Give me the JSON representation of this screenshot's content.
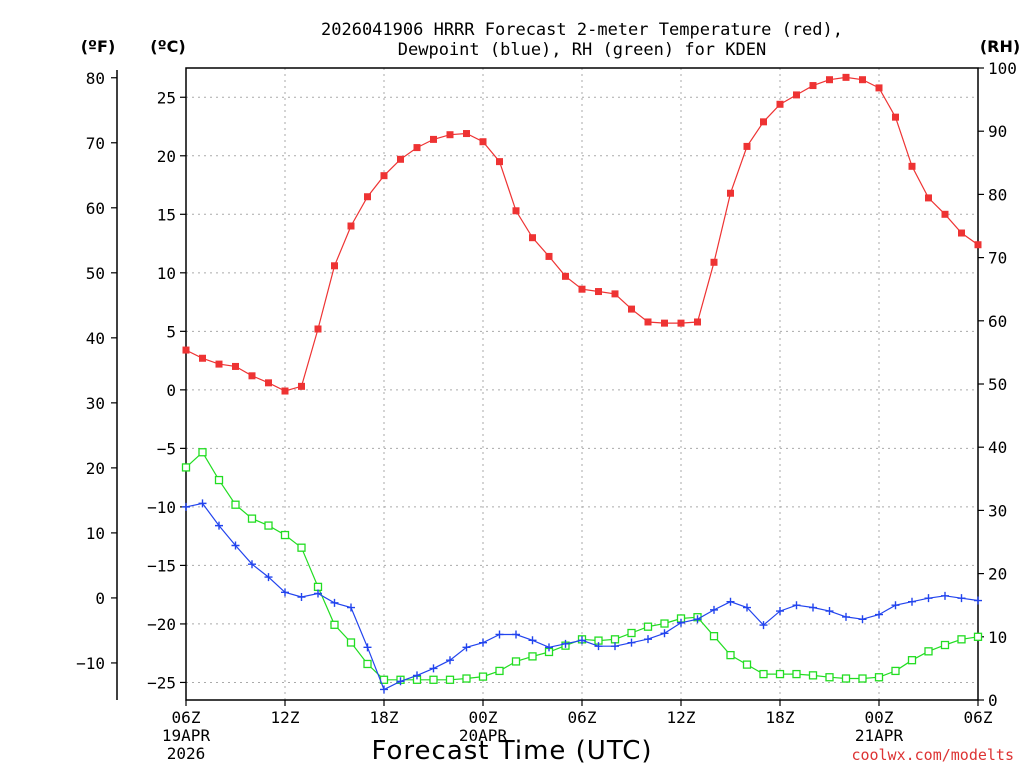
{
  "chart_data": {
    "type": "line",
    "title_line1": "2026041906 HRRR Forecast 2-meter Temperature (red),",
    "title_line2": "Dewpoint (blue), RH (green) for KDEN",
    "xlabel": "Forecast Time (UTC)",
    "credit": "coolwx.com/modelts",
    "unit_labels": {
      "fahrenheit": "(ºF)",
      "celsius": "(ºC)",
      "rh": "(RH)"
    },
    "colors": {
      "temperature": "#ee3333",
      "dewpoint": "#2244ee",
      "rh": "#22dd22",
      "grid": "#aaaaaa",
      "credit": "#dd3333"
    },
    "x_range_hours": [
      0,
      48
    ],
    "celsius_axis": {
      "range": [
        -26.5,
        27.5
      ],
      "ticks": [
        -25,
        -20,
        -15,
        -10,
        -5,
        0,
        5,
        10,
        15,
        20,
        25
      ]
    },
    "fahrenheit_axis": {
      "ticks": [
        -10,
        0,
        10,
        20,
        30,
        40,
        50,
        60,
        70,
        80
      ]
    },
    "rh_axis": {
      "range": [
        0,
        100
      ],
      "ticks": [
        0,
        10,
        20,
        30,
        40,
        50,
        60,
        70,
        80,
        90,
        100
      ]
    },
    "x_ticks": [
      {
        "hour": 0,
        "label": "06Z",
        "sub1": "19APR",
        "sub2": "2026"
      },
      {
        "hour": 6,
        "label": "12Z",
        "sub1": "",
        "sub2": ""
      },
      {
        "hour": 12,
        "label": "18Z",
        "sub1": "",
        "sub2": ""
      },
      {
        "hour": 18,
        "label": "00Z",
        "sub1": "20APR",
        "sub2": ""
      },
      {
        "hour": 24,
        "label": "06Z",
        "sub1": "",
        "sub2": ""
      },
      {
        "hour": 30,
        "label": "12Z",
        "sub1": "",
        "sub2": ""
      },
      {
        "hour": 36,
        "label": "18Z",
        "sub1": "",
        "sub2": ""
      },
      {
        "hour": 42,
        "label": "00Z",
        "sub1": "21APR",
        "sub2": ""
      },
      {
        "hour": 48,
        "label": "06Z",
        "sub1": "",
        "sub2": ""
      }
    ],
    "series": [
      {
        "name": "Temperature",
        "unit": "C",
        "marker": "filled-square",
        "values": [
          3.4,
          2.7,
          2.2,
          2.0,
          1.2,
          0.6,
          -0.1,
          0.3,
          5.2,
          10.6,
          14.0,
          16.5,
          18.3,
          19.7,
          20.7,
          21.4,
          21.8,
          21.9,
          21.2,
          19.5,
          15.3,
          13.0,
          11.4,
          9.7,
          8.6,
          8.4,
          8.2,
          6.9,
          5.8,
          5.7,
          5.7,
          5.8,
          10.9,
          16.8,
          20.8,
          22.9,
          24.4,
          25.2,
          26.0,
          26.5,
          26.7,
          26.5,
          25.8,
          23.3,
          19.1,
          16.4,
          15.0,
          13.4,
          12.4
        ]
      },
      {
        "name": "Dewpoint",
        "unit": "C",
        "marker": "plus",
        "values": [
          -10.0,
          -9.7,
          -11.6,
          -13.3,
          -14.9,
          -16.0,
          -17.3,
          -17.7,
          -17.4,
          -18.2,
          -18.6,
          -22.0,
          -25.6,
          -24.9,
          -24.4,
          -23.8,
          -23.1,
          -22.0,
          -21.6,
          -20.9,
          -20.9,
          -21.4,
          -22.0,
          -21.7,
          -21.4,
          -21.9,
          -21.9,
          -21.6,
          -21.3,
          -20.8,
          -19.9,
          -19.6,
          -18.8,
          -18.1,
          -18.6,
          -20.1,
          -18.9,
          -18.4,
          -18.6,
          -18.9,
          -19.4,
          -19.6,
          -19.2,
          -18.4,
          -18.1,
          -17.8,
          -17.6,
          -17.8,
          -18.0
        ]
      },
      {
        "name": "RH",
        "unit": "%",
        "marker": "open-square",
        "values": [
          36.8,
          39.2,
          34.8,
          30.9,
          28.7,
          27.6,
          26.1,
          24.1,
          17.9,
          11.9,
          9.1,
          5.7,
          3.2,
          3.2,
          3.2,
          3.2,
          3.2,
          3.4,
          3.7,
          4.6,
          6.1,
          6.9,
          7.6,
          8.6,
          9.6,
          9.4,
          9.6,
          10.6,
          11.6,
          12.1,
          12.9,
          13.1,
          10.1,
          7.1,
          5.6,
          4.1,
          4.1,
          4.1,
          3.9,
          3.6,
          3.4,
          3.4,
          3.6,
          4.6,
          6.3,
          7.7,
          8.7,
          9.6,
          10.0
        ]
      }
    ]
  }
}
